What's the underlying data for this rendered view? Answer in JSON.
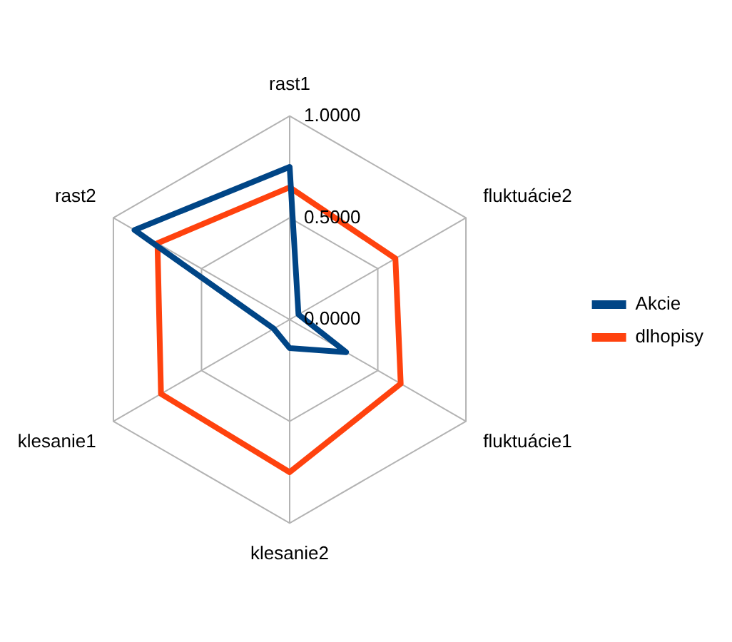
{
  "chart_data": {
    "type": "radar",
    "categories": [
      "rast1",
      "fluktuácie2",
      "fluktuácie1",
      "klesanie2",
      "klesanie1",
      "rast2"
    ],
    "series": [
      {
        "name": "Akcie",
        "color": "#004586",
        "values": [
          0.75,
          0.05,
          0.32,
          0.14,
          0.09,
          0.88
        ]
      },
      {
        "name": "dlhopisy",
        "color": "#ff420e",
        "values": [
          0.65,
          0.6,
          0.63,
          0.75,
          0.73,
          0.75
        ]
      }
    ],
    "ylim": [
      0,
      1
    ],
    "yticks": [
      {
        "value": 0,
        "label": "0.0000"
      },
      {
        "value": 0.5,
        "label": "0.5000"
      },
      {
        "value": 1,
        "label": "1.0000"
      }
    ],
    "grid": true,
    "legend": "right",
    "marker": "none"
  }
}
